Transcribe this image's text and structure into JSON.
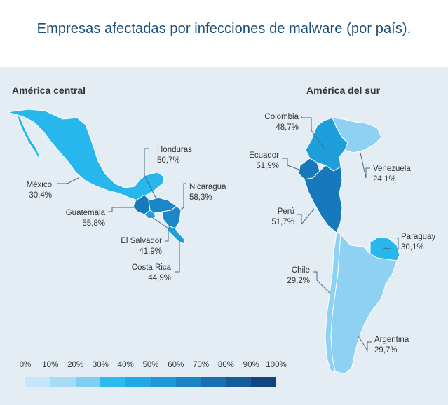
{
  "title": "Empresas afectadas por infecciones de malware (por país).",
  "regions": {
    "central": "América central",
    "south": "América del sur"
  },
  "countries": {
    "mexico": {
      "name": "México",
      "value": "30,4%",
      "color": "#27b7ec"
    },
    "honduras": {
      "name": "Honduras",
      "value": "50,7%",
      "color": "#1a87c8"
    },
    "nicaragua": {
      "name": "Nicaragua",
      "value": "58,3%",
      "color": "#1a87c8"
    },
    "guatemala": {
      "name": "Guatemala",
      "value": "55,8%",
      "color": "#1579bb"
    },
    "el_salvador": {
      "name": "El Salvador",
      "value": "41,9%",
      "color": "#1e9fdc"
    },
    "costa_rica": {
      "name": "Costa Rica",
      "value": "44,9%",
      "color": "#1e9fdc"
    },
    "colombia": {
      "name": "Colombia",
      "value": "48,7%",
      "color": "#1e9fdc"
    },
    "ecuador": {
      "name": "Ecuador",
      "value": "51,9%",
      "color": "#1579bb"
    },
    "venezuela": {
      "name": "Venezuela",
      "value": "24,1%",
      "color": "#8ed1f2"
    },
    "peru": {
      "name": "Perú",
      "value": "51,7%",
      "color": "#1579bb"
    },
    "paraguay": {
      "name": "Paraguay",
      "value": "30,1%",
      "color": "#27b7ec"
    },
    "chile": {
      "name": "Chile",
      "value": "29,2%",
      "color": "#8ed1f2"
    },
    "argentina": {
      "name": "Argentina",
      "value": "29,7%",
      "color": "#8ed1f2"
    }
  },
  "legend": {
    "ticks": [
      "0%",
      "10%",
      "20%",
      "30%",
      "40%",
      "50%",
      "60%",
      "70%",
      "80%",
      "90%",
      "100%"
    ],
    "colors": [
      "#c5e6f8",
      "#a6dcf5",
      "#7fcff2",
      "#2dbaee",
      "#22a9e3",
      "#1d97d6",
      "#1a84c4",
      "#1870b0",
      "#155c99",
      "#114580",
      "#0b2d5c"
    ]
  }
}
